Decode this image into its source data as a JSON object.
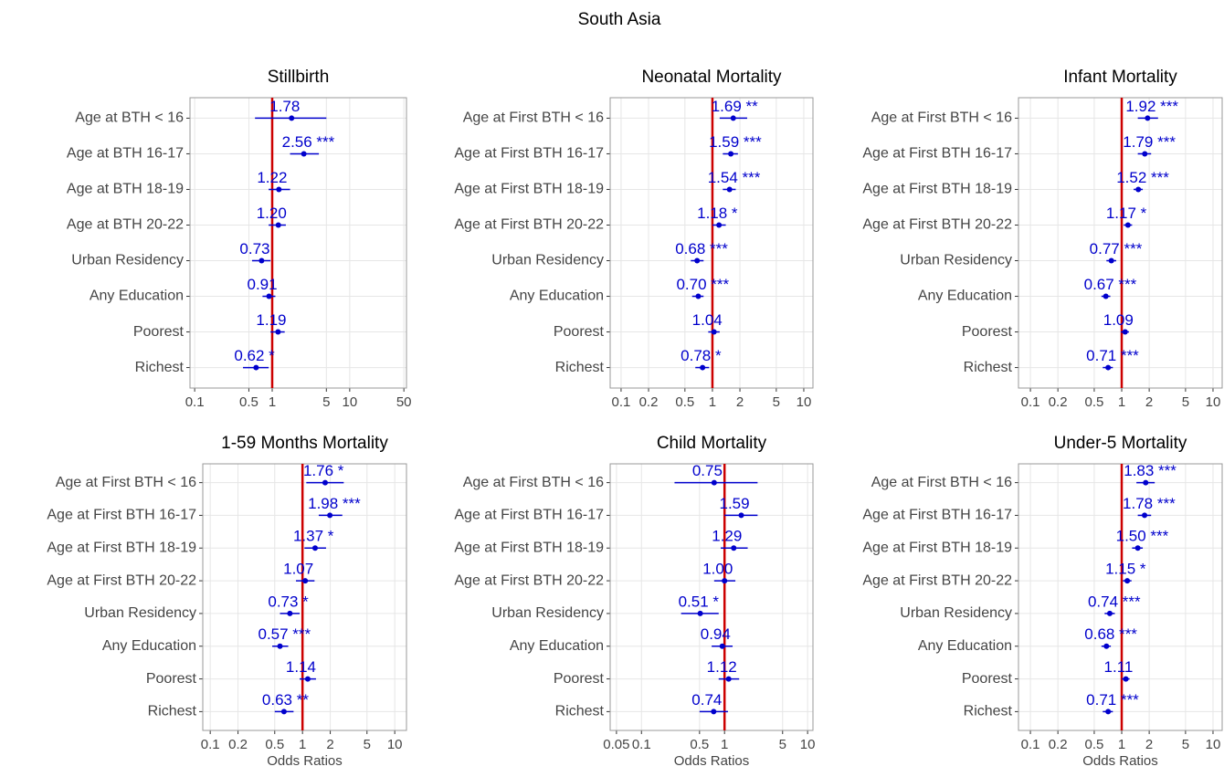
{
  "title": "South Asia",
  "chart_data": [
    {
      "type": "forest",
      "title": "Stillbirth",
      "categories": [
        "Age at BTH < 16",
        "Age at BTH 16-17",
        "Age at BTH 18-19",
        "Age at BTH 20-22",
        "Urban Residency",
        "Any Education",
        "Poorest",
        "Richest"
      ],
      "values": [
        1.78,
        2.56,
        1.22,
        1.2,
        0.73,
        0.91,
        1.19,
        0.62
      ],
      "value_labels": [
        "1.78",
        "2.56 ***",
        "1.22",
        "1.20",
        "0.73",
        "0.91",
        "1.19",
        "0.62 *"
      ],
      "lower": [
        0.6,
        1.7,
        0.9,
        0.9,
        0.55,
        0.75,
        0.95,
        0.42
      ],
      "upper": [
        5,
        4,
        1.7,
        1.5,
        0.95,
        1.1,
        1.45,
        0.9
      ],
      "xlim": [
        0.087,
        54
      ],
      "xticks": [
        0.1,
        0.5,
        1,
        5,
        10,
        50
      ],
      "log_x": true,
      "grid": true,
      "ref_line": 1,
      "ref_color": "#cc0000",
      "color": "#0000cc"
    },
    {
      "type": "forest",
      "title": "Neonatal Mortality",
      "categories": [
        "Age at First BTH < 16",
        "Age at First BTH 16-17",
        "Age at First BTH 18-19",
        "Age at First BTH 20-22",
        "Urban Residency",
        "Any Education",
        "Poorest",
        "Richest"
      ],
      "values": [
        1.69,
        1.59,
        1.54,
        1.18,
        0.68,
        0.7,
        1.04,
        0.78
      ],
      "value_labels": [
        "1.69 **",
        "1.59 ***",
        "1.54 ***",
        "1.18 *",
        "0.68 ***",
        "0.70 ***",
        "1.04",
        "0.78 *"
      ],
      "lower": [
        1.2,
        1.3,
        1.3,
        1.0,
        0.58,
        0.6,
        0.9,
        0.65
      ],
      "upper": [
        2.4,
        1.9,
        1.8,
        1.4,
        0.8,
        0.8,
        1.2,
        0.92
      ],
      "xlim": [
        0.076,
        12.6
      ],
      "xticks": [
        0.1,
        0.2,
        0.5,
        1,
        2,
        5,
        10
      ],
      "log_x": true,
      "grid": true,
      "ref_line": 1,
      "ref_color": "#cc0000",
      "color": "#0000cc"
    },
    {
      "type": "forest",
      "title": "Infant Mortality",
      "categories": [
        "Age at First BTH < 16",
        "Age at First BTH 16-17",
        "Age at First BTH 18-19",
        "Age at First BTH 20-22",
        "Urban Residency",
        "Any Education",
        "Poorest",
        "Richest"
      ],
      "values": [
        1.92,
        1.79,
        1.52,
        1.17,
        0.77,
        0.67,
        1.09,
        0.71
      ],
      "value_labels": [
        "1.92 ***",
        "1.79 ***",
        "1.52 ***",
        "1.17 *",
        "0.77 ***",
        "0.67 ***",
        "1.09",
        "0.71 ***"
      ],
      "lower": [
        1.5,
        1.5,
        1.35,
        1.05,
        0.68,
        0.6,
        0.98,
        0.62
      ],
      "upper": [
        2.5,
        2.1,
        1.7,
        1.3,
        0.87,
        0.75,
        1.2,
        0.8
      ],
      "xlim": [
        0.074,
        12.6
      ],
      "xticks": [
        0.1,
        0.2,
        0.5,
        1,
        2,
        5,
        10
      ],
      "log_x": true,
      "grid": true,
      "ref_line": 1,
      "ref_color": "#cc0000",
      "color": "#0000cc"
    },
    {
      "type": "forest",
      "title": "1-59 Months Mortality",
      "xlabel": "Odds Ratios",
      "categories": [
        "Age at First BTH < 16",
        "Age at First BTH 16-17",
        "Age at First BTH 18-19",
        "Age at First BTH 20-22",
        "Urban Residency",
        "Any Education",
        "Poorest",
        "Richest"
      ],
      "values": [
        1.76,
        1.98,
        1.37,
        1.07,
        0.73,
        0.57,
        1.14,
        0.63
      ],
      "value_labels": [
        "1.76 *",
        "1.98 ***",
        "1.37 *",
        "1.07",
        "0.73 *",
        "0.57 ***",
        "1.14",
        "0.63 **"
      ],
      "lower": [
        1.1,
        1.5,
        1.05,
        0.85,
        0.57,
        0.47,
        0.93,
        0.5
      ],
      "upper": [
        2.8,
        2.7,
        1.8,
        1.35,
        0.93,
        0.7,
        1.4,
        0.8
      ],
      "xlim": [
        0.083,
        13.4
      ],
      "xticks": [
        0.1,
        0.2,
        0.5,
        1,
        2,
        5,
        10
      ],
      "log_x": true,
      "grid": true,
      "ref_line": 1,
      "ref_color": "#cc0000",
      "color": "#0000cc"
    },
    {
      "type": "forest",
      "title": "Child Mortality",
      "xlabel": "Odds Ratios",
      "categories": [
        "Age at First BTH < 16",
        "Age at First BTH 16-17",
        "Age at First BTH 18-19",
        "Age at First BTH 20-22",
        "Urban Residency",
        "Any Education",
        "Poorest",
        "Richest"
      ],
      "values": [
        0.75,
        1.59,
        1.29,
        1.0,
        0.51,
        0.94,
        1.12,
        0.74
      ],
      "value_labels": [
        "0.75",
        "1.59",
        "1.29",
        "1.00",
        "0.51 *",
        "0.94",
        "1.12",
        "0.74"
      ],
      "lower": [
        0.25,
        1.0,
        0.9,
        0.75,
        0.3,
        0.7,
        0.85,
        0.5
      ],
      "upper": [
        2.5,
        2.5,
        1.9,
        1.35,
        0.85,
        1.25,
        1.5,
        1.1
      ],
      "xlim": [
        0.042,
        11.6
      ],
      "xticks": [
        0.05,
        0.1,
        0.5,
        1,
        5,
        10
      ],
      "log_x": true,
      "grid": true,
      "ref_line": 1,
      "ref_color": "#cc0000",
      "color": "#0000cc"
    },
    {
      "type": "forest",
      "title": "Under-5 Mortality",
      "xlabel": "Odds Ratios",
      "categories": [
        "Age at First BTH < 16",
        "Age at First BTH 16-17",
        "Age at First BTH 18-19",
        "Age at First BTH 20-22",
        "Urban Residency",
        "Any Education",
        "Poorest",
        "Richest"
      ],
      "values": [
        1.83,
        1.78,
        1.5,
        1.15,
        0.74,
        0.68,
        1.11,
        0.71
      ],
      "value_labels": [
        "1.83 ***",
        "1.78 ***",
        "1.50 ***",
        "1.15 *",
        "0.74 ***",
        "0.68 ***",
        "1.11",
        "0.71 ***"
      ],
      "lower": [
        1.45,
        1.5,
        1.3,
        1.03,
        0.65,
        0.6,
        1.0,
        0.62
      ],
      "upper": [
        2.3,
        2.1,
        1.7,
        1.28,
        0.84,
        0.76,
        1.22,
        0.8
      ],
      "xlim": [
        0.074,
        12.6
      ],
      "xticks": [
        0.1,
        0.2,
        0.5,
        1,
        2,
        5,
        10
      ],
      "log_x": true,
      "grid": true,
      "ref_line": 1,
      "ref_color": "#cc0000",
      "color": "#0000cc"
    }
  ]
}
